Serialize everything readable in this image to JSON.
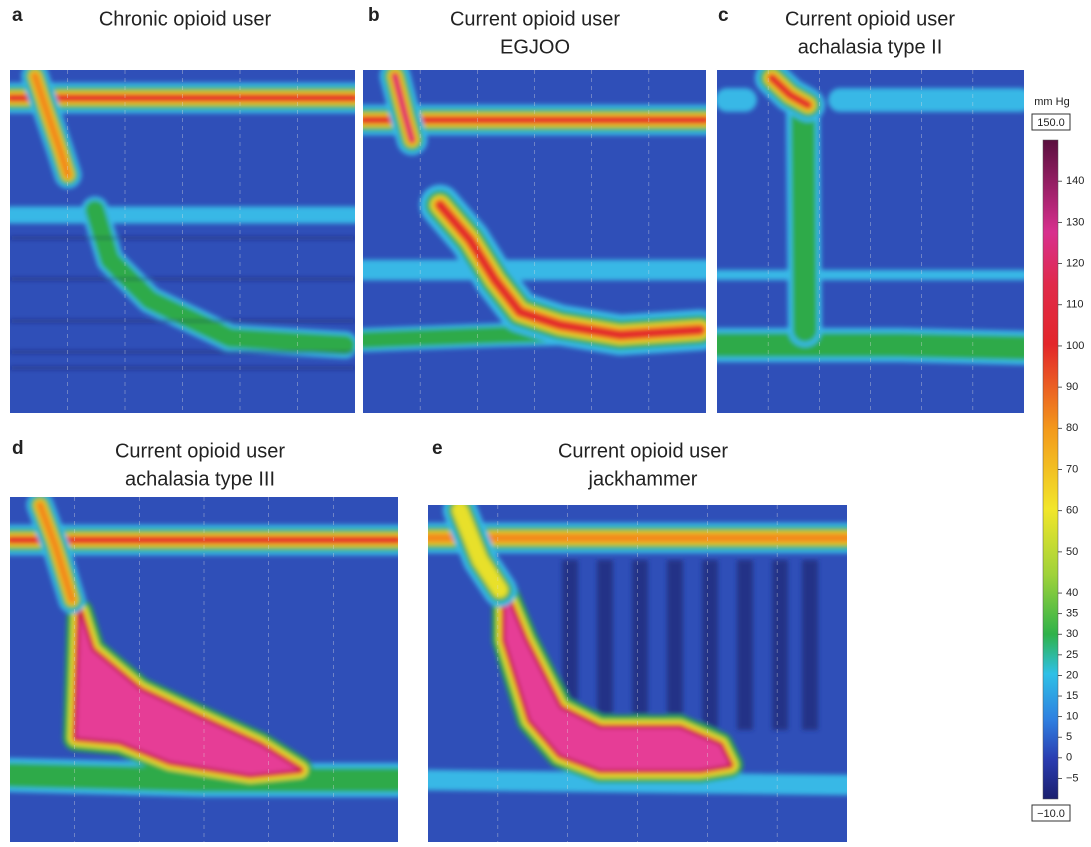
{
  "panels": [
    {
      "letter": "a",
      "title": [
        "Chronic opioid user"
      ]
    },
    {
      "letter": "b",
      "title": [
        "Current opioid user",
        "EGJOO"
      ]
    },
    {
      "letter": "c",
      "title": [
        "Current opioid user",
        "achalasia type II"
      ]
    },
    {
      "letter": "d",
      "title": [
        "Current opioid user",
        "achalasia type III"
      ]
    },
    {
      "letter": "e",
      "title": [
        "Current opioid user",
        "jackhammer"
      ]
    }
  ],
  "colorbar": {
    "unit": "mm Hg",
    "max": {
      "value": 150,
      "label": "150.0"
    },
    "min": {
      "value": -10,
      "label": "−10.0"
    },
    "ticks": [
      140,
      130,
      120,
      110,
      100,
      90,
      80,
      70,
      60,
      50,
      40,
      35,
      30,
      25,
      20,
      15,
      10,
      5,
      0,
      {
        "value": -5,
        "label": "−5"
      }
    ]
  }
}
